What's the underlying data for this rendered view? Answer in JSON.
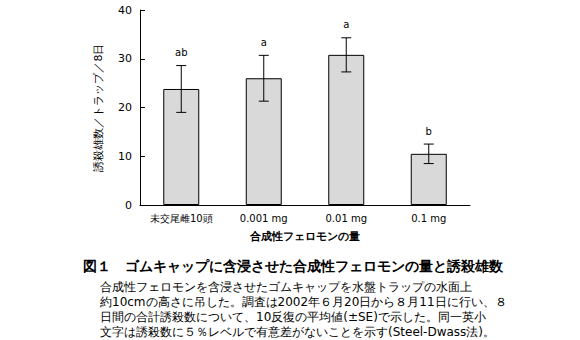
{
  "chart_data": {
    "type": "bar",
    "title": "図１　ゴムキャップに含浸させた合成性フェロモンの量と誘殺雄数",
    "note": [
      "合成性フェロモンを含浸させたゴムキャップを水盤トラップの水面上",
      "約10cmの高さに吊した。調査は2002年６月20日から８月11日に行い、８",
      "日間の合計誘殺数について、10反復の平均値(±SE)で示した。同一英小",
      "文字は誘殺数に５％レベルで有意差がないことを示す(Steel-Dwass法)。"
    ],
    "x_label": "合成性フェロモンの量",
    "y_label": "誘殺雄数／トラップ／8日",
    "categories": [
      "未交尾雌10頭",
      "0.001 mg",
      "0.01 mg",
      "0.1 mg"
    ],
    "values": [
      23.8,
      26.0,
      30.8,
      10.5
    ],
    "errors": [
      4.8,
      4.7,
      3.5,
      2.0
    ],
    "significance": [
      "ab",
      "a",
      "a",
      "b"
    ],
    "color": "#d9d9d9",
    "ylim": [
      0,
      40
    ],
    "yticks": [
      0,
      10,
      20,
      30,
      40
    ],
    "grid": false
  }
}
